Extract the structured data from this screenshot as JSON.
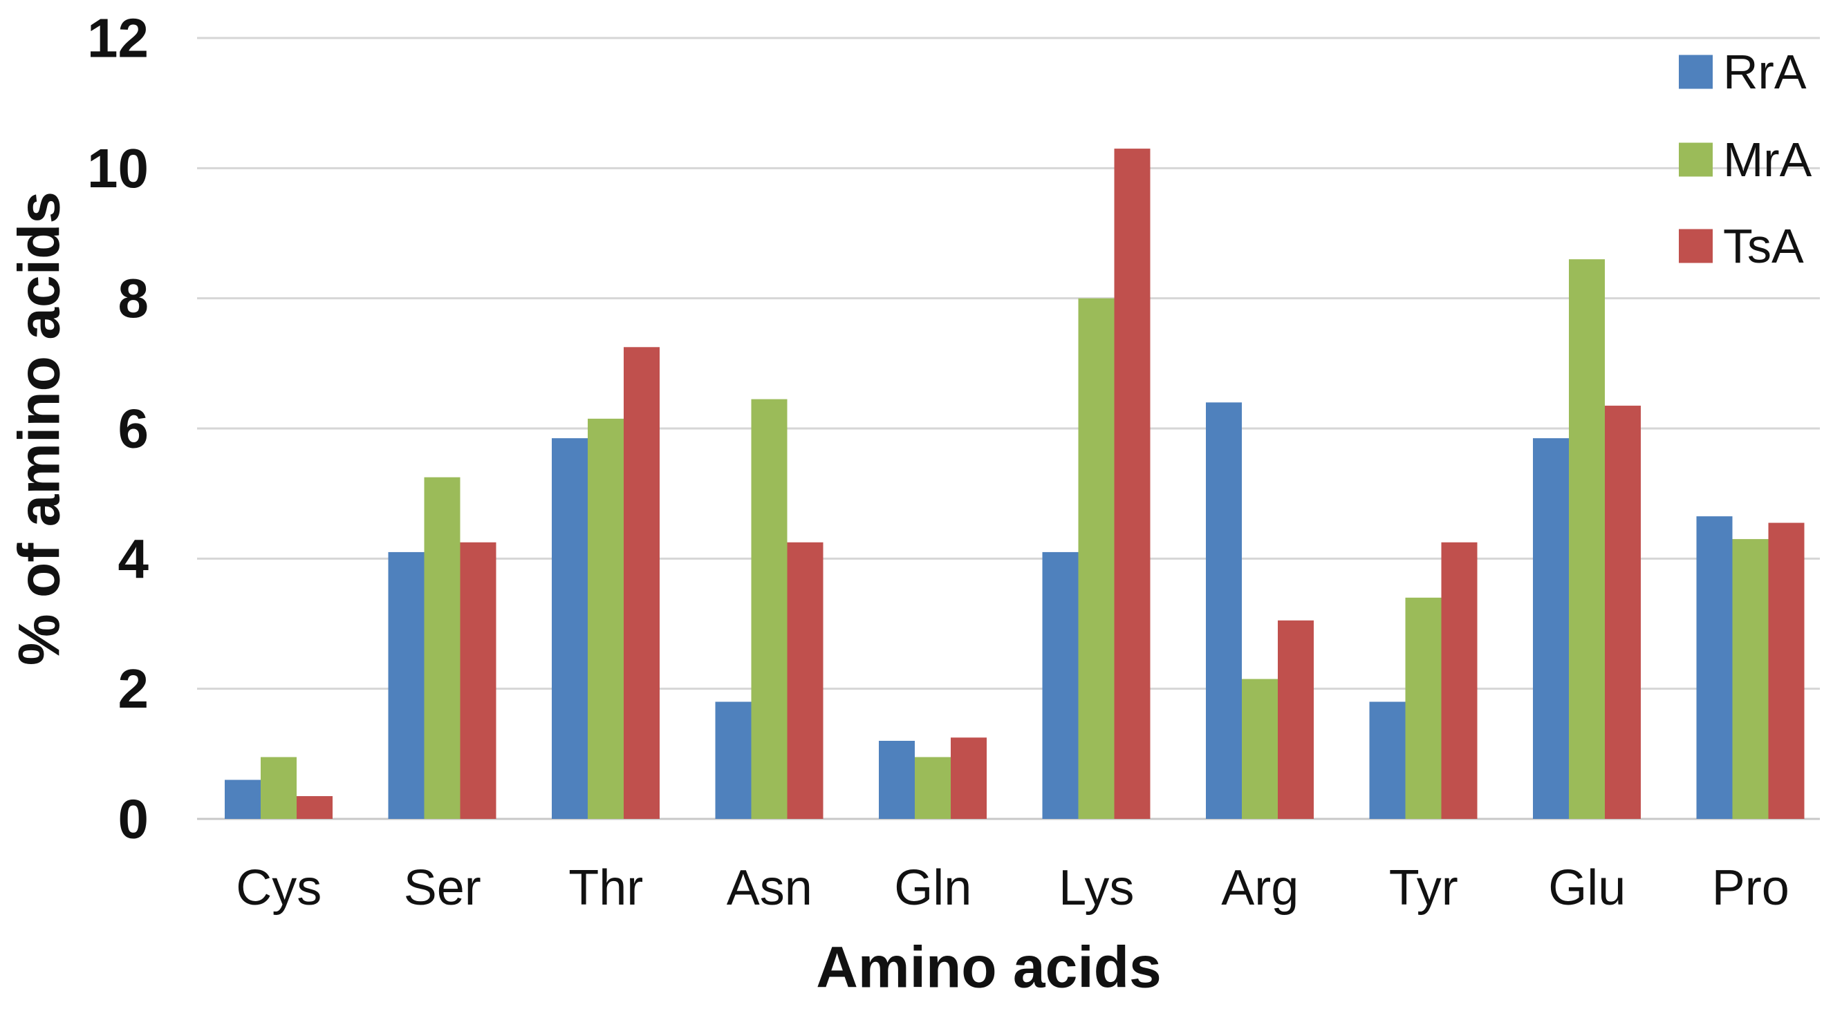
{
  "chart_data": {
    "type": "bar",
    "title": "",
    "xlabel": "Amino acids",
    "ylabel": "% of amino acids",
    "categories": [
      "Cys",
      "Ser",
      "Thr",
      "Asn",
      "Gln",
      "Lys",
      "Arg",
      "Tyr",
      "Glu",
      "Pro"
    ],
    "series": [
      {
        "name": "RrA",
        "color": "#4F81BD",
        "values": [
          0.6,
          4.1,
          5.85,
          1.8,
          1.2,
          4.1,
          6.4,
          1.8,
          5.85,
          4.65
        ]
      },
      {
        "name": "MrA",
        "color": "#9BBB59",
        "values": [
          0.95,
          5.25,
          6.15,
          6.45,
          0.95,
          8.0,
          2.15,
          3.4,
          8.6,
          4.3
        ]
      },
      {
        "name": "TsA",
        "color": "#C0504D",
        "values": [
          0.35,
          4.25,
          7.25,
          4.25,
          1.25,
          10.3,
          3.05,
          4.25,
          6.35,
          4.55
        ]
      }
    ],
    "ylim": [
      0,
      12
    ],
    "ytick_step": 2,
    "ytick_labels": [
      "0",
      "2",
      "4",
      "6",
      "8",
      "10",
      "12"
    ],
    "grid": "horizontal",
    "legend_position": "top-right",
    "gridline_color": "#D6D6D6",
    "axis_line_color": "#C8C8C8",
    "text_color": "#111111"
  }
}
